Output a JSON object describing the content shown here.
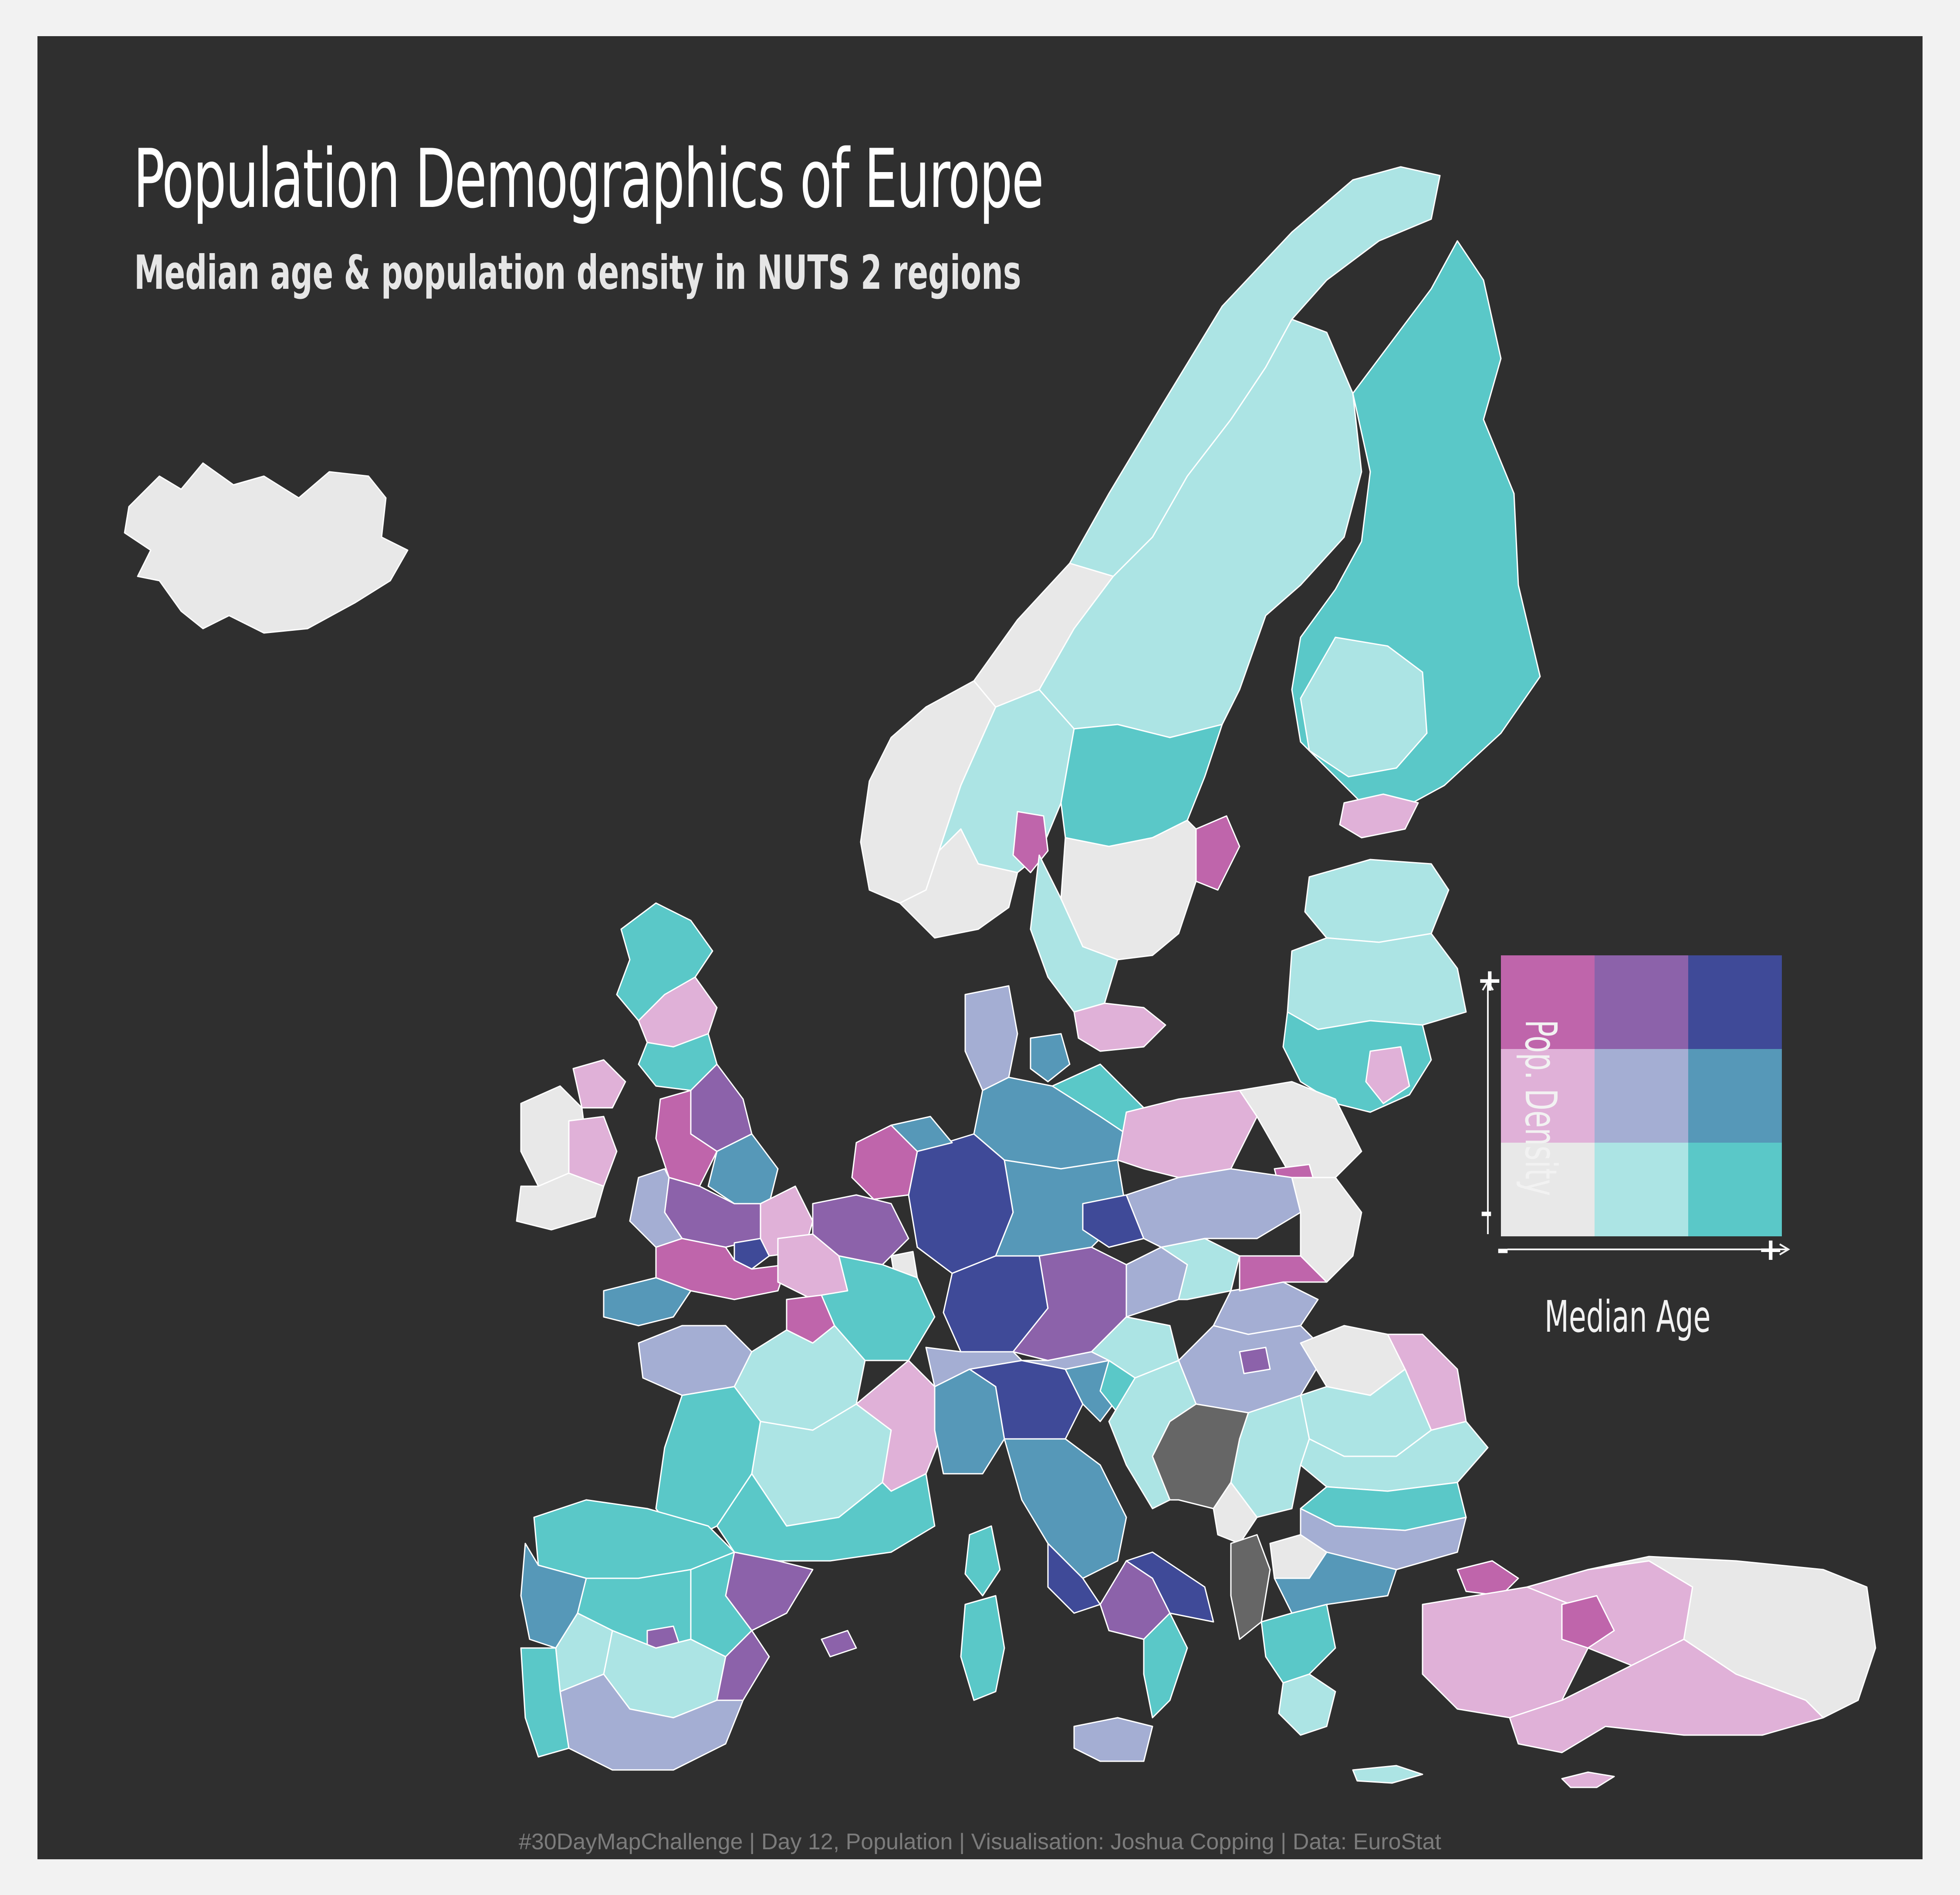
{
  "title": "Population Demographics of Europe",
  "subtitle": "Median age & population density in NUTS 2 regions",
  "caption": "#30DayMapChallenge | Day 12, Population | Visualisation: Joshua Copping | Data: EuroStat",
  "legend": {
    "y_label": "Pop. Density",
    "x_label": "Median Age",
    "plus_sign": "+",
    "minus_sign": "-",
    "grid": [
      [
        "#bf65ab",
        "#8c62aa",
        "#3f4a98"
      ],
      [
        "#e0b1d8",
        "#a4aed3",
        "#5698b8"
      ],
      [
        "#e8e8e8",
        "#ace4e4",
        "#5ac8c8"
      ]
    ]
  },
  "colors": {
    "background": "#2f2f2f",
    "outer": "#f2f2f2",
    "no_data": "#666666",
    "border": "#ffffff"
  }
}
